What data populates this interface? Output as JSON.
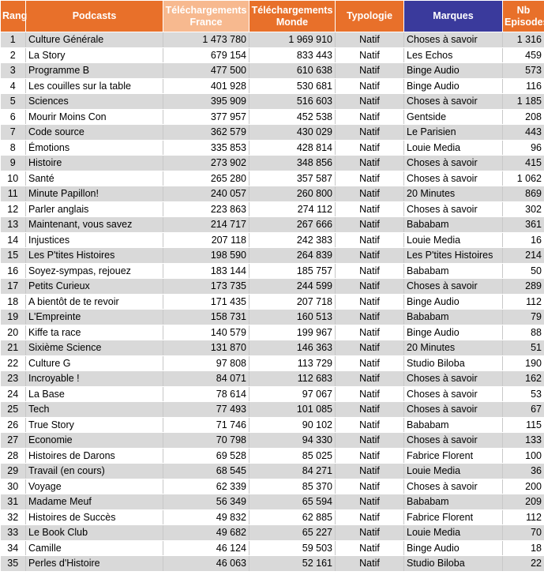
{
  "table": {
    "header": [
      "Rang",
      "Podcasts",
      "Téléchargements France",
      "Téléchargements Monde",
      "Typologie",
      "Marques",
      "Nb Episodes"
    ],
    "rows": [
      [
        "1",
        "Culture Générale",
        "1 473 780",
        "1 969 910",
        "Natif",
        "Choses à savoir",
        "1 316"
      ],
      [
        "2",
        "La Story",
        "679 154",
        "833 443",
        "Natif",
        "Les Echos",
        "459"
      ],
      [
        "3",
        "Programme B",
        "477 500",
        "610 638",
        "Natif",
        "Binge Audio",
        "573"
      ],
      [
        "4",
        "Les couilles sur la table",
        "401 928",
        "530 681",
        "Natif",
        "Binge Audio",
        "116"
      ],
      [
        "5",
        "Sciences",
        "395 909",
        "516 603",
        "Natif",
        "Choses à savoir",
        "1 185"
      ],
      [
        "6",
        "Mourir Moins Con",
        "377 957",
        "452 538",
        "Natif",
        "Gentside",
        "208"
      ],
      [
        "7",
        "Code source",
        "362 579",
        "430 029",
        "Natif",
        "Le Parisien",
        "443"
      ],
      [
        "8",
        "Émotions",
        "335 853",
        "428 814",
        "Natif",
        "Louie Media",
        "96"
      ],
      [
        "9",
        "Histoire",
        "273 902",
        "348 856",
        "Natif",
        "Choses à savoir",
        "415"
      ],
      [
        "10",
        "Santé",
        "265 280",
        "357 587",
        "Natif",
        "Choses à savoir",
        "1 062"
      ],
      [
        "11",
        "Minute Papillon!",
        "240 057",
        "260 800",
        "Natif",
        "20 Minutes",
        "869"
      ],
      [
        "12",
        "Parler anglais",
        "223 863",
        "274 112",
        "Natif",
        "Choses à savoir",
        "302"
      ],
      [
        "13",
        "Maintenant, vous savez",
        "214 717",
        "267 666",
        "Natif",
        "Bababam",
        "361"
      ],
      [
        "14",
        "Injustices",
        "207 118",
        "242 383",
        "Natif",
        "Louie Media",
        "16"
      ],
      [
        "15",
        "Les P'tites Histoires",
        "198 590",
        "264 839",
        "Natif",
        "Les P'tites Histoires",
        "214"
      ],
      [
        "16",
        "Soyez-sympas, rejouez",
        "183 144",
        "185 757",
        "Natif",
        "Bababam",
        "50"
      ],
      [
        "17",
        "Petits Curieux",
        "173 735",
        "244 599",
        "Natif",
        "Choses à savoir",
        "289"
      ],
      [
        "18",
        "A bientôt de te revoir",
        "171 435",
        "207 718",
        "Natif",
        "Binge Audio",
        "112"
      ],
      [
        "19",
        "L'Empreinte",
        "158 731",
        "160 513",
        "Natif",
        "Bababam",
        "79"
      ],
      [
        "20",
        "Kiffe ta race",
        "140 579",
        "199 967",
        "Natif",
        "Binge Audio",
        "88"
      ],
      [
        "21",
        "Sixième Science",
        "131 870",
        "146 363",
        "Natif",
        "20 Minutes",
        "51"
      ],
      [
        "22",
        "Culture G",
        "97 808",
        "113 729",
        "Natif",
        "Studio Biloba",
        "190"
      ],
      [
        "23",
        "Incroyable !",
        "84 071",
        "112 683",
        "Natif",
        "Choses à savoir",
        "162"
      ],
      [
        "24",
        "La Base",
        "78 614",
        "97 067",
        "Natif",
        "Choses à savoir",
        "53"
      ],
      [
        "25",
        "Tech",
        "77 493",
        "101 085",
        "Natif",
        "Choses à savoir",
        "67"
      ],
      [
        "26",
        "True Story",
        "71 746",
        "90 102",
        "Natif",
        "Bababam",
        "115"
      ],
      [
        "27",
        "Economie",
        "70 798",
        "94 330",
        "Natif",
        "Choses à savoir",
        "133"
      ],
      [
        "28",
        "Histoires de Darons",
        "69 528",
        "85 025",
        "Natif",
        "Fabrice Florent",
        "100"
      ],
      [
        "29",
        "Travail (en cours)",
        "68 545",
        "84 271",
        "Natif",
        "Louie Media",
        "36"
      ],
      [
        "30",
        "Voyage",
        "62 339",
        "85 370",
        "Natif",
        "Choses à savoir",
        "200"
      ],
      [
        "31",
        "Madame Meuf",
        "56 349",
        "65 594",
        "Natif",
        "Bababam",
        "209"
      ],
      [
        "32",
        "Histoires de Succès",
        "49 832",
        "62 885",
        "Natif",
        "Fabrice Florent",
        "112"
      ],
      [
        "33",
        "Le Book Club",
        "49 682",
        "65 227",
        "Natif",
        "Louie Media",
        "70"
      ],
      [
        "34",
        "Camille",
        "46 124",
        "59 503",
        "Natif",
        "Binge Audio",
        "18"
      ],
      [
        "35",
        "Perles d'Histoire",
        "46 063",
        "52 161",
        "Natif",
        "Studio Biloba",
        "22"
      ]
    ]
  }
}
